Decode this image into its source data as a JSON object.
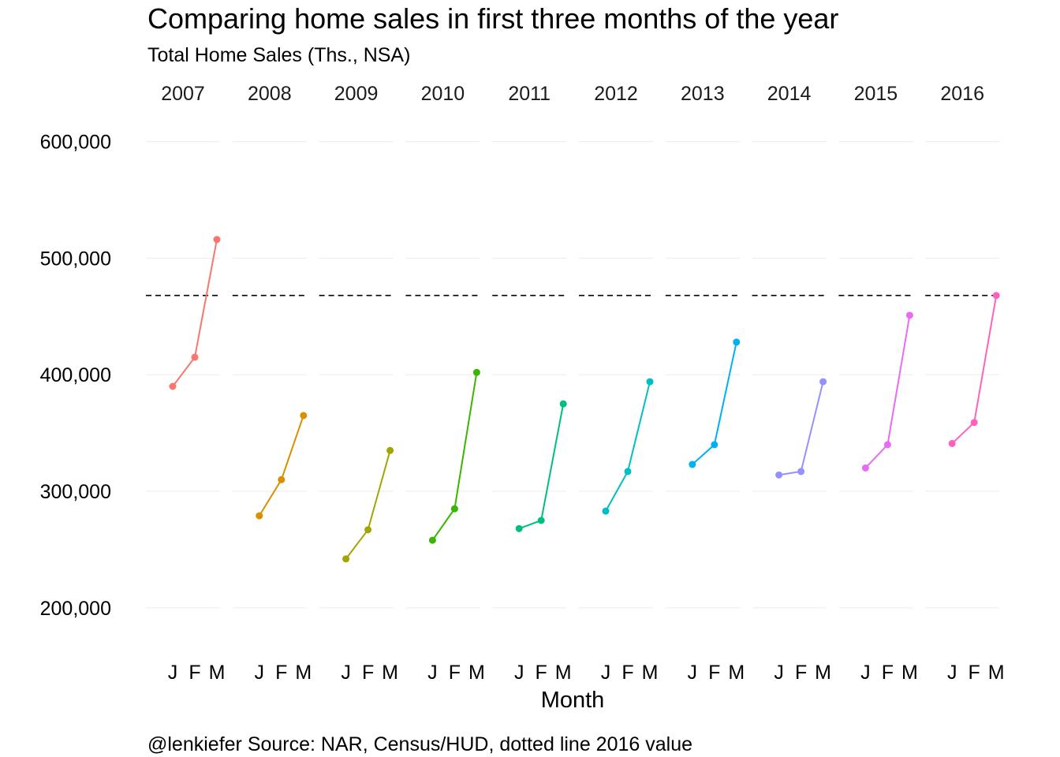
{
  "chart_data": {
    "type": "line",
    "title": "Comparing home sales in first three months of the year",
    "subtitle": "Total Home Sales (Ths., NSA)",
    "xlabel": "Month",
    "ylabel": "",
    "caption": "@lenkiefer Source: NAR, Census/HUD, dotted line 2016 value",
    "facet_variable": "year",
    "categories": [
      "J",
      "F",
      "M"
    ],
    "ylim": [
      160000,
      620000
    ],
    "y_ticks": [
      200000,
      300000,
      400000,
      500000,
      600000
    ],
    "y_tick_labels": [
      "200,000",
      "300,000",
      "400,000",
      "500,000",
      "600,000"
    ],
    "grid": true,
    "legend": "none",
    "reference_line": {
      "value": 468000,
      "style": "dashed",
      "color": "#000000"
    },
    "series": [
      {
        "name": "2007",
        "color": "#F8766D",
        "values": [
          390000,
          415000,
          516000
        ]
      },
      {
        "name": "2008",
        "color": "#D89000",
        "values": [
          279000,
          310000,
          365000
        ]
      },
      {
        "name": "2009",
        "color": "#A3A500",
        "values": [
          242000,
          267000,
          335000
        ]
      },
      {
        "name": "2010",
        "color": "#39B600",
        "values": [
          258000,
          285000,
          402000
        ]
      },
      {
        "name": "2011",
        "color": "#00BF7D",
        "values": [
          268000,
          275000,
          375000
        ]
      },
      {
        "name": "2012",
        "color": "#00BFC4",
        "values": [
          283000,
          317000,
          394000
        ]
      },
      {
        "name": "2013",
        "color": "#00B0F6",
        "values": [
          323000,
          340000,
          428000
        ]
      },
      {
        "name": "2014",
        "color": "#9590FF",
        "values": [
          314000,
          317000,
          394000
        ]
      },
      {
        "name": "2015",
        "color": "#E76BF3",
        "values": [
          320000,
          340000,
          451000
        ]
      },
      {
        "name": "2016",
        "color": "#FF62BC",
        "values": [
          341000,
          359000,
          468000
        ]
      }
    ]
  }
}
